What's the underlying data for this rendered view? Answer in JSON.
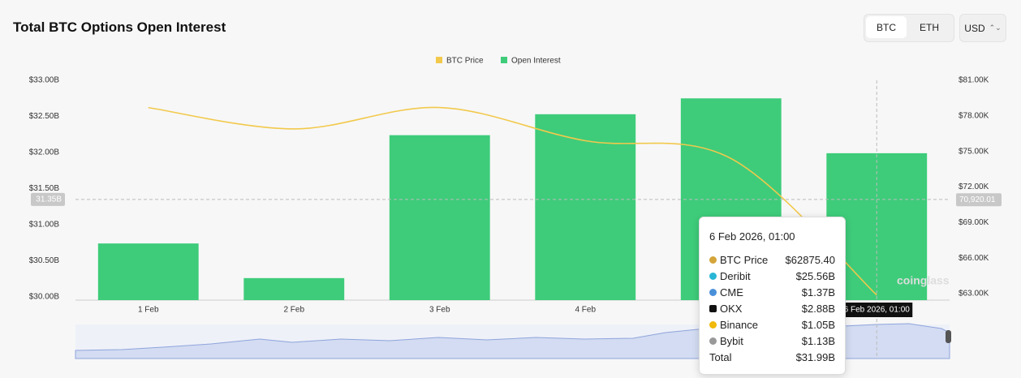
{
  "header": {
    "title": "Total BTC Options Open Interest"
  },
  "controls": {
    "coins": [
      "BTC",
      "ETH"
    ],
    "currency": "USD"
  },
  "chart_data": {
    "type": "bar",
    "categories": [
      "1 Feb",
      "2 Feb",
      "3 Feb",
      "4 Feb",
      null,
      null
    ],
    "series": [
      {
        "name": "BTC Price",
        "type": "line",
        "axis": "y2",
        "color": "#f2c94c",
        "values": [
          78.7,
          76.9,
          78.7,
          75.9,
          74.4,
          62.88
        ]
      },
      {
        "name": "Open Interest",
        "type": "bar",
        "axis": "y",
        "color": "#3ecc7a",
        "values": [
          30.74,
          30.26,
          32.24,
          32.53,
          32.75,
          31.99
        ]
      }
    ],
    "ylim": [
      30,
      33
    ],
    "yticks": [
      {
        "value": 30,
        "label": "$30.00B"
      },
      {
        "value": 30.5,
        "label": "$30.50B"
      },
      {
        "value": 31,
        "label": "$31.00B"
      },
      {
        "value": 31.5,
        "label": "$31.50B"
      },
      {
        "value": 32,
        "label": "$32.00B"
      },
      {
        "value": 32.5,
        "label": "$32.50B"
      },
      {
        "value": 33,
        "label": "$33.00B"
      }
    ],
    "y2lim": [
      63,
      81
    ],
    "y2ticks": [
      {
        "value": 63,
        "label": "$63.00K"
      },
      {
        "value": 66,
        "label": "$66.00K"
      },
      {
        "value": 69,
        "label": "$69.00K"
      },
      {
        "value": 72,
        "label": "$72.00K"
      },
      {
        "value": 75,
        "label": "$75.00K"
      },
      {
        "value": 78,
        "label": "$78.00K"
      },
      {
        "value": 81,
        "label": "$81.00K"
      }
    ],
    "crosshair": {
      "x_label": "6 Feb 2026, 01:00",
      "y": {
        "value": 31.35,
        "label": "31.35B"
      },
      "y2": {
        "value": 70.92001,
        "label": "70,920.01"
      }
    },
    "watermark": "coinglass",
    "legend": "top"
  },
  "tooltip": {
    "title": "6 Feb 2026, 01:00",
    "rows": [
      [
        "BTC Price",
        "$62875.40"
      ],
      [
        "Deribit",
        "$25.56B"
      ],
      [
        "CME",
        "$1.37B"
      ],
      [
        "OKX",
        "$2.88B"
      ],
      [
        "Binance",
        "$1.05B"
      ],
      [
        "Bybit",
        "$1.13B"
      ],
      [
        "Total",
        "$31.99B"
      ]
    ]
  }
}
